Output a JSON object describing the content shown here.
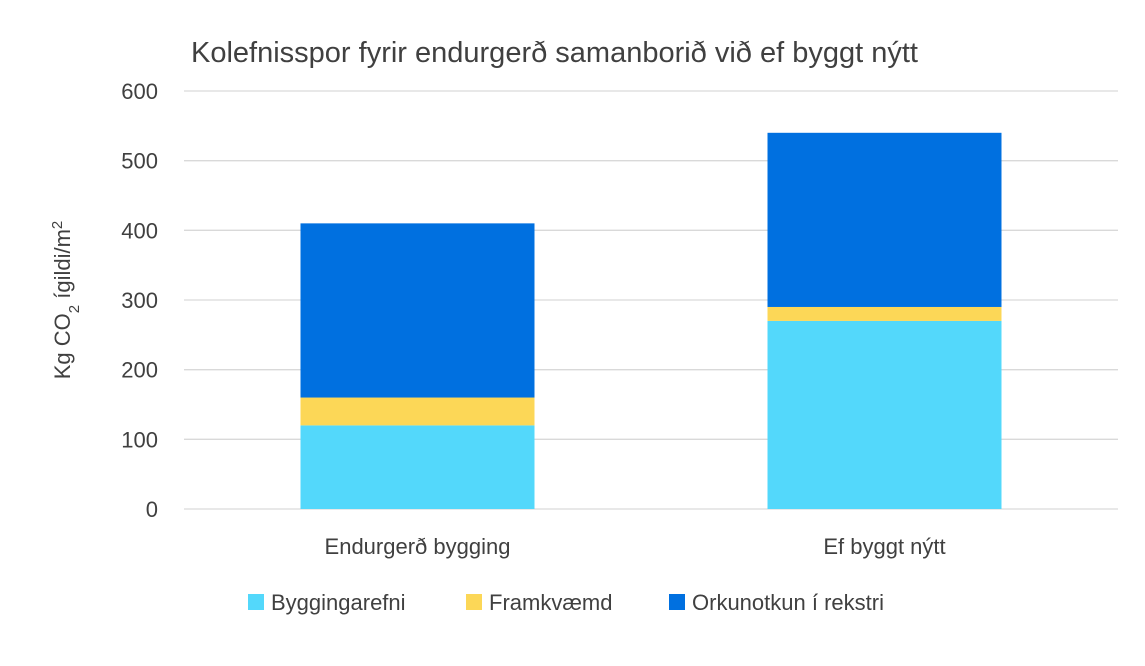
{
  "chart_data": {
    "type": "bar",
    "stacked": true,
    "title": "Kolefnisspor fyrir endurgerð samanborið við ef byggt nýtt",
    "ylabel": {
      "prefix": "Kg CO",
      "sub": "2",
      "mid": " ígildi/m",
      "sup": "2"
    },
    "categories": [
      "Endurgerð bygging",
      "Ef byggt nýtt"
    ],
    "ylim": [
      0,
      600
    ],
    "yticks": [
      0,
      100,
      200,
      300,
      400,
      500,
      600
    ],
    "grid": true,
    "legend": "bottom",
    "series": [
      {
        "name": "Byggingarefni",
        "values": [
          120,
          270
        ],
        "color": "#53d8fb"
      },
      {
        "name": "Framkvæmd",
        "values": [
          40,
          20
        ],
        "color": "#fcd757"
      },
      {
        "name": "Orkunotkun í rekstri",
        "values": [
          250,
          250
        ],
        "color": "#0070e0"
      }
    ]
  }
}
